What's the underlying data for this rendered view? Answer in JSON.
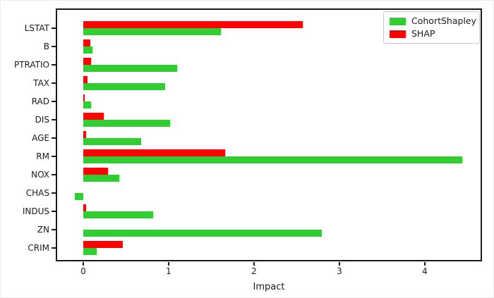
{
  "figure": {
    "background_color": "#ffffff",
    "spine_color": "#1a1a1a",
    "text_color": "#1a1a1a"
  },
  "chart_data": {
    "type": "bar",
    "orientation": "horizontal",
    "title": "",
    "xlabel": "Impact",
    "ylabel": "",
    "categories": [
      "LSTAT",
      "B",
      "PTRATIO",
      "TAX",
      "RAD",
      "DIS",
      "AGE",
      "RM",
      "NOX",
      "CHAS",
      "INDUS",
      "ZN",
      "CRIM"
    ],
    "series": [
      {
        "name": "CohortShapley",
        "color": "#32CD32",
        "values": [
          1.61,
          0.11,
          1.1,
          0.96,
          0.09,
          1.02,
          0.68,
          4.44,
          0.42,
          -0.1,
          0.82,
          2.79,
          0.16
        ]
      },
      {
        "name": "SHAP",
        "color": "#FF0000",
        "values": [
          2.57,
          0.08,
          0.09,
          0.05,
          0.02,
          0.24,
          0.03,
          1.66,
          0.29,
          0.0,
          0.03,
          0.0,
          0.46
        ]
      }
    ],
    "bar_order_top_to_bottom_within_group": [
      "SHAP",
      "CohortShapley"
    ],
    "x_ticks": [
      0,
      1,
      2,
      3,
      4
    ],
    "xlim": [
      -0.33,
      4.67
    ],
    "grid": false,
    "legend": {
      "position": "upper right",
      "entries": [
        "CohortShapley",
        "SHAP"
      ]
    }
  }
}
